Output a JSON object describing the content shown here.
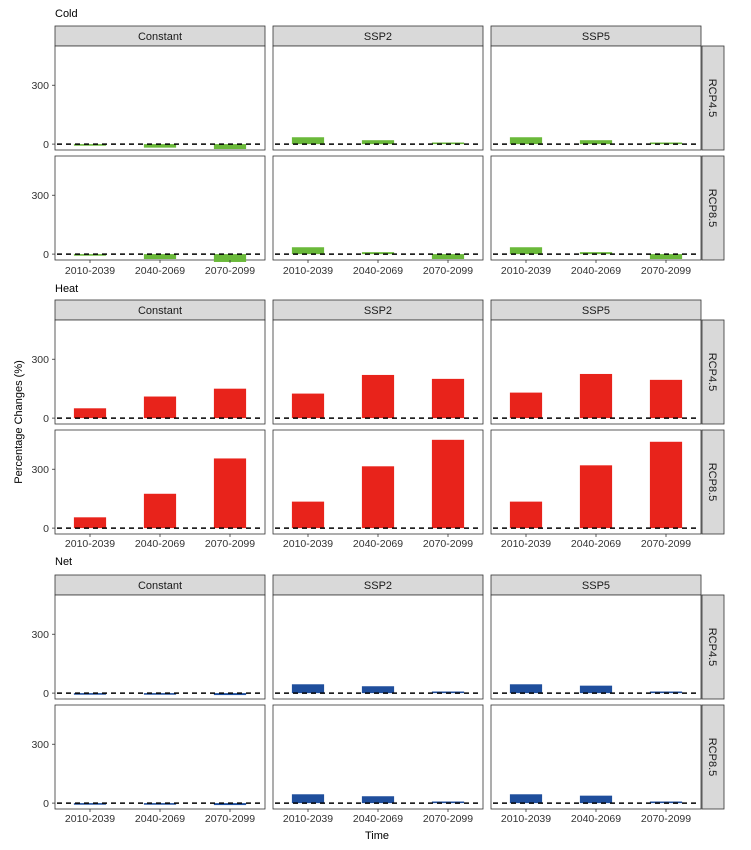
{
  "figure": {
    "y_axis_title": "Percentage Changes (%)",
    "x_axis_title": "Time",
    "colors": {
      "Cold": "#6ab93a",
      "Heat": "#e8231b",
      "Net": "#1f4e9c"
    },
    "strip_fill": "#d9d9d9",
    "reference_line": 0
  },
  "chart_data": [
    {
      "type": "bar",
      "title": "Cold",
      "categories": [
        "2010-2039",
        "2040-2069",
        "2070-2099"
      ],
      "columns": [
        "Constant",
        "SSP2",
        "SSP5"
      ],
      "rows": [
        "RCP4.5",
        "RCP8.5"
      ],
      "ylim": [
        -30,
        500
      ],
      "yticks": [
        0,
        300
      ],
      "panels": [
        {
          "row": "RCP4.5",
          "column": "Constant",
          "values": [
            -5,
            -18,
            -25
          ]
        },
        {
          "row": "RCP4.5",
          "column": "SSP2",
          "values": [
            35,
            20,
            3
          ]
        },
        {
          "row": "RCP4.5",
          "column": "SSP5",
          "values": [
            35,
            20,
            3
          ]
        },
        {
          "row": "RCP8.5",
          "column": "Constant",
          "values": [
            -7,
            -25,
            -40
          ]
        },
        {
          "row": "RCP8.5",
          "column": "SSP2",
          "values": [
            35,
            10,
            -25
          ]
        },
        {
          "row": "RCP8.5",
          "column": "SSP5",
          "values": [
            35,
            10,
            -25
          ]
        }
      ]
    },
    {
      "type": "bar",
      "title": "Heat",
      "categories": [
        "2010-2039",
        "2040-2069",
        "2070-2099"
      ],
      "columns": [
        "Constant",
        "SSP2",
        "SSP5"
      ],
      "rows": [
        "RCP4.5",
        "RCP8.5"
      ],
      "ylim": [
        -30,
        500
      ],
      "yticks": [
        0,
        300
      ],
      "panels": [
        {
          "row": "RCP4.5",
          "column": "Constant",
          "values": [
            50,
            110,
            150
          ]
        },
        {
          "row": "RCP4.5",
          "column": "SSP2",
          "values": [
            125,
            220,
            200
          ]
        },
        {
          "row": "RCP4.5",
          "column": "SSP5",
          "values": [
            130,
            225,
            195
          ]
        },
        {
          "row": "RCP8.5",
          "column": "Constant",
          "values": [
            55,
            175,
            355
          ]
        },
        {
          "row": "RCP8.5",
          "column": "SSP2",
          "values": [
            135,
            315,
            450
          ]
        },
        {
          "row": "RCP8.5",
          "column": "SSP5",
          "values": [
            135,
            320,
            440
          ]
        }
      ]
    },
    {
      "type": "bar",
      "title": "Net",
      "categories": [
        "2010-2039",
        "2040-2069",
        "2070-2099"
      ],
      "columns": [
        "Constant",
        "SSP2",
        "SSP5"
      ],
      "rows": [
        "RCP4.5",
        "RCP8.5"
      ],
      "ylim": [
        -30,
        500
      ],
      "yticks": [
        0,
        300
      ],
      "panels": [
        {
          "row": "RCP4.5",
          "column": "Constant",
          "values": [
            -2,
            -8,
            -10
          ]
        },
        {
          "row": "RCP4.5",
          "column": "SSP2",
          "values": [
            45,
            35,
            8
          ]
        },
        {
          "row": "RCP4.5",
          "column": "SSP5",
          "values": [
            45,
            38,
            5
          ]
        },
        {
          "row": "RCP8.5",
          "column": "Constant",
          "values": [
            -2,
            -8,
            -10
          ]
        },
        {
          "row": "RCP8.5",
          "column": "SSP2",
          "values": [
            45,
            35,
            8
          ]
        },
        {
          "row": "RCP8.5",
          "column": "SSP5",
          "values": [
            45,
            38,
            5
          ]
        }
      ]
    }
  ]
}
